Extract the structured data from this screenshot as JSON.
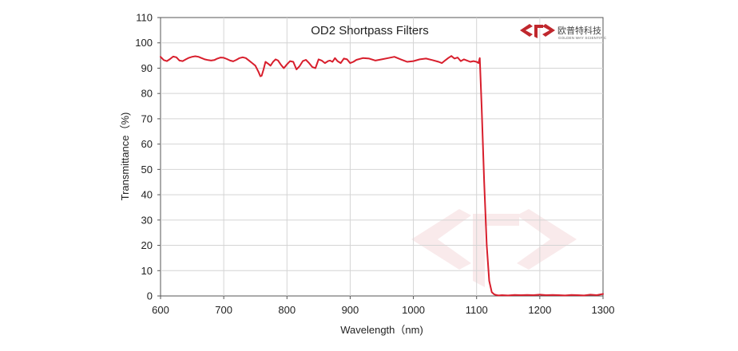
{
  "logo": {
    "name_cn": "欧普特科技",
    "name_en": "GOLDEN WAY SCIENTIFIC",
    "color": "#c0272d"
  },
  "chart_data": {
    "type": "line",
    "title": "OD2  Shortpass Filters",
    "xlabel": "Wavelength（nm)",
    "ylabel": "Transmittance（%)",
    "xlim": [
      600,
      1300
    ],
    "ylim": [
      0,
      110
    ],
    "xticks": [
      600,
      700,
      800,
      900,
      1000,
      1100,
      1200,
      1300
    ],
    "yticks": [
      0,
      10,
      20,
      30,
      40,
      50,
      60,
      70,
      80,
      90,
      100,
      110
    ],
    "grid": true,
    "legend": "none",
    "series": [
      {
        "color": "#d81e2c",
        "x": [
          600,
          605,
          610,
          615,
          620,
          625,
          630,
          635,
          640,
          645,
          650,
          655,
          660,
          665,
          670,
          675,
          680,
          685,
          690,
          695,
          700,
          705,
          710,
          715,
          720,
          725,
          730,
          735,
          740,
          745,
          750,
          755,
          758,
          760,
          763,
          766,
          770,
          774,
          778,
          782,
          786,
          790,
          795,
          800,
          805,
          810,
          815,
          820,
          825,
          830,
          835,
          840,
          845,
          850,
          855,
          860,
          865,
          868,
          872,
          876,
          880,
          885,
          890,
          895,
          900,
          905,
          910,
          920,
          930,
          940,
          950,
          960,
          970,
          980,
          990,
          1000,
          1010,
          1020,
          1030,
          1040,
          1045,
          1050,
          1055,
          1060,
          1065,
          1070,
          1075,
          1080,
          1085,
          1090,
          1095,
          1100,
          1103,
          1105,
          1108,
          1112,
          1116,
          1120,
          1124,
          1128,
          1132,
          1135,
          1140,
          1150,
          1160,
          1170,
          1180,
          1190,
          1200,
          1210,
          1220,
          1230,
          1240,
          1250,
          1260,
          1270,
          1280,
          1290,
          1300
        ],
        "y": [
          94.5,
          93.2,
          92.8,
          93.6,
          94.6,
          94.3,
          93.0,
          92.8,
          93.5,
          94.1,
          94.5,
          94.7,
          94.5,
          94.0,
          93.5,
          93.2,
          93.0,
          93.2,
          93.8,
          94.2,
          94.1,
          93.6,
          93.0,
          92.7,
          93.3,
          94.0,
          94.3,
          94.0,
          93.0,
          92.0,
          91.0,
          88.5,
          86.8,
          87.0,
          89.5,
          92.5,
          91.8,
          91.0,
          92.5,
          93.5,
          93.0,
          91.5,
          90.0,
          91.5,
          92.8,
          92.5,
          89.5,
          90.8,
          92.8,
          93.3,
          92.0,
          90.5,
          90.0,
          93.5,
          93.0,
          92.0,
          92.8,
          93.0,
          92.5,
          94.0,
          92.8,
          92.0,
          93.8,
          93.5,
          92.0,
          92.5,
          93.3,
          94.0,
          93.8,
          93.0,
          93.5,
          94.0,
          94.5,
          93.5,
          92.5,
          92.8,
          93.5,
          93.8,
          93.2,
          92.5,
          92.0,
          93.0,
          94.0,
          94.8,
          93.8,
          94.2,
          92.8,
          93.5,
          93.0,
          92.5,
          92.8,
          92.5,
          92.0,
          94.0,
          75.0,
          45.0,
          20.0,
          6.0,
          1.5,
          0.6,
          0.3,
          0.2,
          0.3,
          0.2,
          0.4,
          0.3,
          0.4,
          0.3,
          0.5,
          0.3,
          0.4,
          0.3,
          0.2,
          0.4,
          0.3,
          0.2,
          0.5,
          0.3,
          0.8
        ]
      }
    ]
  }
}
